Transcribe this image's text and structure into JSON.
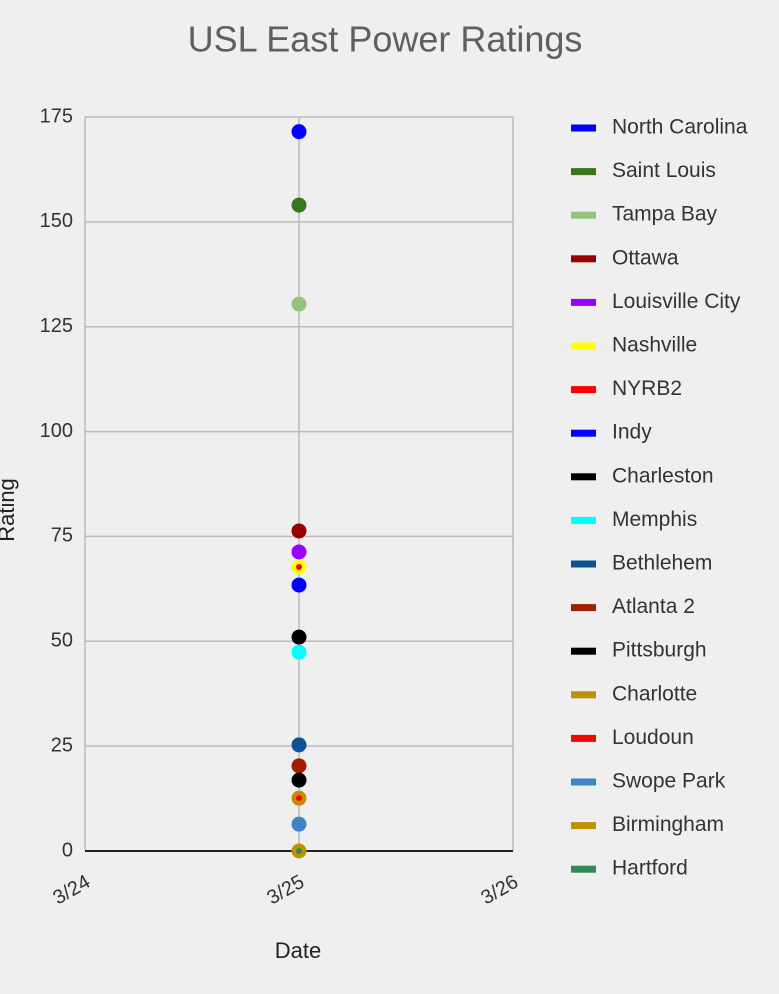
{
  "chart_data": {
    "type": "line",
    "title": "USL East Power Ratings",
    "x_label": "Date",
    "y_label": "Rating",
    "x": [
      "3/24",
      "3/25",
      "3/26"
    ],
    "ylim": [
      0,
      175
    ],
    "yticks": [
      0,
      25,
      50,
      75,
      100,
      125,
      150,
      175
    ],
    "grid": true,
    "legend": "right",
    "series": [
      {
        "name": "North Carolina",
        "color": "#0000ff",
        "values": [
          null,
          171.5,
          null
        ]
      },
      {
        "name": "Saint Louis",
        "color": "#38761d",
        "values": [
          null,
          154,
          null
        ]
      },
      {
        "name": "Tampa Bay",
        "color": "#93c47d",
        "values": [
          null,
          130.4,
          null
        ]
      },
      {
        "name": "Ottawa",
        "color": "#990000",
        "values": [
          null,
          76.3,
          null
        ]
      },
      {
        "name": "Louisville City",
        "color": "#9900ff",
        "values": [
          null,
          71.3,
          null
        ]
      },
      {
        "name": "Nashville",
        "color": "#ffff00",
        "values": [
          null,
          67.7,
          null
        ]
      },
      {
        "name": "NYRB2",
        "color": "#ff0000",
        "values": [
          null,
          67.7,
          null
        ]
      },
      {
        "name": "Indy",
        "color": "#0000ff",
        "values": [
          null,
          63.4,
          null
        ]
      },
      {
        "name": "Charleston",
        "color": "#000000",
        "values": [
          null,
          51,
          null
        ]
      },
      {
        "name": "Memphis",
        "color": "#00ffff",
        "values": [
          null,
          47.4,
          null
        ]
      },
      {
        "name": "Bethlehem",
        "color": "#0b5394",
        "values": [
          null,
          25.3,
          null
        ]
      },
      {
        "name": "Atlanta 2",
        "color": "#a61c00",
        "values": [
          null,
          20.3,
          null
        ]
      },
      {
        "name": "Pittsburgh",
        "color": "#000000",
        "values": [
          null,
          16.9,
          null
        ]
      },
      {
        "name": "Charlotte",
        "color": "#bf9000",
        "values": [
          null,
          12.6,
          null
        ]
      },
      {
        "name": "Loudoun",
        "color": "#ff0000",
        "values": [
          null,
          12.6,
          null
        ]
      },
      {
        "name": "Swope Park",
        "color": "#3d85c6",
        "values": [
          null,
          6.4,
          null
        ]
      },
      {
        "name": "Birmingham",
        "color": "#bf9000",
        "values": [
          null,
          0,
          null
        ]
      },
      {
        "name": "Hartford",
        "color": "#2e8b57",
        "values": [
          null,
          0,
          null
        ]
      }
    ]
  }
}
